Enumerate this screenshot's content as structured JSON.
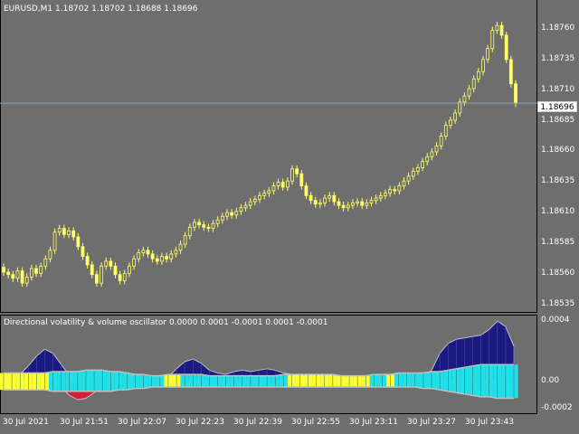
{
  "chart_header": {
    "symbol_timeframe": "EURUSD,M1",
    "open": "1.18702",
    "high": "1.18702",
    "low": "1.18688",
    "close": "1.18696"
  },
  "indicator_header": {
    "name": "Directional volatility & volume oscillator",
    "values": [
      "0.0000",
      "0.0001",
      "-0.0001",
      "0.0001",
      "-0.0001"
    ]
  },
  "current_price": "1.18696",
  "colors": {
    "background": "#6e6e6e",
    "candle": "#ffff66",
    "bid_line": "#8fa0b0",
    "navy_area": "#1a1a80",
    "red_area": "#d0203a",
    "cyan_hist": "#22e0e8",
    "yellow_hist": "#ffff33",
    "envelope": "#c0c0c0"
  },
  "price_axis": [
    "1.18760",
    "1.18735",
    "1.18710",
    "1.18685",
    "1.18660",
    "1.18635",
    "1.18610",
    "1.18585",
    "1.18560",
    "1.18535"
  ],
  "sub_axis": [
    "0.0004",
    "0.00",
    "-0.0002"
  ],
  "time_axis": [
    "30 Jul 2021",
    "30 Jul 21:51",
    "30 Jul 22:07",
    "30 Jul 22:23",
    "30 Jul 22:39",
    "30 Jul 22:55",
    "30 Jul 23:11",
    "30 Jul 23:27",
    "30 Jul 23:43"
  ],
  "chart_data": [
    {
      "type": "candlestick",
      "title": "EURUSD,M1",
      "ylim": [
        1.18528,
        1.18775
      ],
      "close": [
        1.18557,
        1.18555,
        1.18552,
        1.18558,
        1.18548,
        1.18553,
        1.1856,
        1.18556,
        1.18562,
        1.18568,
        1.18575,
        1.1859,
        1.18593,
        1.18588,
        1.18591,
        1.18586,
        1.18578,
        1.1857,
        1.18563,
        1.18555,
        1.18548,
        1.18562,
        1.18566,
        1.18562,
        1.18555,
        1.1855,
        1.18556,
        1.18562,
        1.18568,
        1.18573,
        1.18575,
        1.18572,
        1.18568,
        1.18566,
        1.1857,
        1.18568,
        1.18572,
        1.18575,
        1.1858,
        1.18587,
        1.18594,
        1.18598,
        1.18596,
        1.18594,
        1.18593,
        1.18597,
        1.186,
        1.18603,
        1.18606,
        1.18604,
        1.18607,
        1.1861,
        1.18612,
        1.18615,
        1.18617,
        1.1862,
        1.18622,
        1.18624,
        1.18628,
        1.18631,
        1.18627,
        1.18632,
        1.18642,
        1.18638,
        1.18628,
        1.1862,
        1.18616,
        1.18613,
        1.18614,
        1.18618,
        1.1862,
        1.18615,
        1.18612,
        1.1861,
        1.18612,
        1.18614,
        1.18615,
        1.18612,
        1.18614,
        1.18616,
        1.18618,
        1.1862,
        1.18622,
        1.18625,
        1.18624,
        1.18628,
        1.18632,
        1.18636,
        1.1864,
        1.18643,
        1.18648,
        1.18652,
        1.18656,
        1.18661,
        1.18669,
        1.18678,
        1.18682,
        1.18688,
        1.18697,
        1.18702,
        1.18708,
        1.18716,
        1.18722,
        1.18732,
        1.18741,
        1.18756,
        1.1876,
        1.18752,
        1.18732,
        1.18712,
        1.18696
      ]
    },
    {
      "type": "area",
      "title": "Directional volatility & volume oscillator",
      "ylim": [
        -0.00022,
        0.00045
      ],
      "positive_band": [
        2e-05,
        3e-05,
        5e-05,
        0.00011,
        0.00018,
        0.00023,
        0.0002,
        0.00012,
        4e-05,
        2e-05,
        1e-05,
        1e-05,
        1e-05,
        2e-05,
        3e-05,
        4e-05,
        3e-05,
        2e-05,
        1e-05,
        1e-05,
        3e-05,
        9e-05,
        0.00014,
        0.00016,
        0.00013,
        8e-05,
        6e-05,
        5e-05,
        7e-05,
        8e-05,
        7e-05,
        8e-05,
        9e-05,
        8e-05,
        6e-05,
        5e-05,
        4e-05,
        4e-05,
        2e-05,
        1e-05,
        1e-05,
        1e-05,
        1e-05,
        1e-05,
        1e-05,
        1e-05,
        2e-05,
        2e-05,
        3e-05,
        3e-05,
        2e-05,
        2e-05,
        8e-05,
        0.0002,
        0.00027,
        0.0003,
        0.00031,
        0.00032,
        0.00033,
        0.00037,
        0.00043,
        0.00039,
        0.00025
      ],
      "negative_band": [
        0.0,
        0.0,
        0.0,
        0.0,
        0.0,
        0.0,
        0.0,
        -4e-05,
        -0.0001,
        -0.00013,
        -0.00012,
        -8e-05,
        -4e-05,
        -1e-05,
        0.0,
        0.0,
        0.0,
        0.0,
        0.0,
        0.0,
        0.0,
        0.0,
        0.0,
        0.0,
        0.0,
        0.0,
        0.0,
        0.0,
        0.0,
        0.0,
        0.0,
        0.0,
        0.0,
        0.0,
        0.0,
        -1e-05,
        -4e-05,
        -2e-05,
        -1e-05,
        0.0,
        0.0,
        0.0,
        0.0,
        0.0,
        0.0,
        0.0,
        0.0,
        0.0,
        0.0,
        0.0,
        0.0,
        0.0,
        0.0,
        0.0,
        0.0,
        0.0,
        0.0,
        0.0,
        0.0,
        0.0,
        0.0,
        0.0,
        0.0
      ],
      "histogram_upper": [
        6e-05,
        6e-05,
        6e-05,
        6e-05,
        6e-05,
        6e-05,
        7e-05,
        7e-05,
        7e-05,
        7e-05,
        8e-05,
        8e-05,
        8e-05,
        7e-05,
        7e-05,
        6e-05,
        5e-05,
        5e-05,
        4e-05,
        4e-05,
        5e-05,
        5e-05,
        5e-05,
        5e-05,
        5e-05,
        4e-05,
        4e-05,
        4e-05,
        4e-05,
        4e-05,
        4e-05,
        4e-05,
        4e-05,
        4e-05,
        5e-05,
        5e-05,
        5e-05,
        5e-05,
        5e-05,
        5e-05,
        5e-05,
        4e-05,
        4e-05,
        4e-05,
        4e-05,
        5e-05,
        5e-05,
        5e-05,
        6e-05,
        6e-05,
        6e-05,
        6e-05,
        7e-05,
        7e-05,
        8e-05,
        9e-05,
        0.0001,
        0.00011,
        0.00012,
        0.00012,
        0.00012,
        0.00012,
        0.00012
      ],
      "histogram_lower": [
        -6e-05,
        -6e-05,
        -6e-05,
        -6e-05,
        -6e-05,
        -6e-05,
        -7e-05,
        -7e-05,
        -7e-05,
        -7e-05,
        -7e-05,
        -7e-05,
        -7e-05,
        -7e-05,
        -6e-05,
        -6e-05,
        -5e-05,
        -5e-05,
        -4e-05,
        -4e-05,
        -4e-05,
        -4e-05,
        -4e-05,
        -4e-05,
        -4e-05,
        -4e-05,
        -4e-05,
        -4e-05,
        -4e-05,
        -4e-05,
        -4e-05,
        -4e-05,
        -4e-05,
        -4e-05,
        -4e-05,
        -4e-05,
        -4e-05,
        -4e-05,
        -4e-05,
        -4e-05,
        -4e-05,
        -4e-05,
        -4e-05,
        -4e-05,
        -4e-05,
        -4e-05,
        -4e-05,
        -4e-05,
        -4e-05,
        -4e-05,
        -4e-05,
        -5e-05,
        -5e-05,
        -6e-05,
        -7e-05,
        -8e-05,
        -9e-05,
        -0.0001,
        -0.00011,
        -0.00011,
        -0.00012,
        -0.00012,
        -0.00012
      ],
      "histogram_color": [
        "yellow",
        "yellow",
        "yellow",
        "yellow",
        "yellow",
        "yellow",
        "cyan",
        "cyan",
        "cyan",
        "cyan",
        "cyan",
        "cyan",
        "cyan",
        "cyan",
        "cyan",
        "cyan",
        "cyan",
        "cyan",
        "cyan",
        "cyan",
        "yellow",
        "yellow",
        "cyan",
        "cyan",
        "cyan",
        "cyan",
        "cyan",
        "cyan",
        "cyan",
        "cyan",
        "cyan",
        "cyan",
        "cyan",
        "cyan",
        "cyan",
        "yellow",
        "yellow",
        "yellow",
        "yellow",
        "yellow",
        "yellow",
        "yellow",
        "yellow",
        "yellow",
        "yellow",
        "cyan",
        "cyan",
        "yellow",
        "cyan",
        "cyan",
        "cyan",
        "cyan",
        "cyan",
        "cyan",
        "cyan",
        "cyan",
        "cyan",
        "cyan",
        "cyan",
        "cyan",
        "cyan",
        "cyan",
        "cyan"
      ]
    }
  ]
}
